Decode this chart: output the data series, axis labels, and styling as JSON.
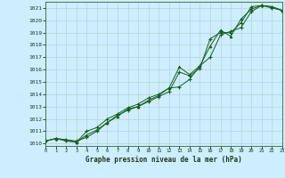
{
  "xlabel": "Graphe pression niveau de la mer (hPa)",
  "xlim": [
    0,
    23
  ],
  "ylim": [
    1009.8,
    1021.5
  ],
  "yticks": [
    1010,
    1011,
    1012,
    1013,
    1014,
    1015,
    1016,
    1017,
    1018,
    1019,
    1020,
    1021
  ],
  "xticks": [
    0,
    1,
    2,
    3,
    4,
    5,
    6,
    7,
    8,
    9,
    10,
    11,
    12,
    13,
    14,
    15,
    16,
    17,
    18,
    19,
    20,
    21,
    22,
    23
  ],
  "background_color": "#cceeff",
  "grid_color": "#b0cccc",
  "line_color": "#1a5c1a",
  "line1": [
    1010.2,
    1010.4,
    1010.3,
    1010.2,
    1010.5,
    1011.0,
    1011.7,
    1012.3,
    1012.7,
    1013.0,
    1013.4,
    1013.8,
    1014.2,
    1015.8,
    1015.5,
    1016.1,
    1018.5,
    1019.0,
    1019.0,
    1019.8,
    1021.1,
    1021.2,
    1021.0,
    1020.8
  ],
  "line2": [
    1010.2,
    1010.4,
    1010.2,
    1010.1,
    1011.0,
    1011.3,
    1012.0,
    1012.4,
    1012.9,
    1013.2,
    1013.7,
    1014.0,
    1014.5,
    1014.6,
    1015.2,
    1016.3,
    1017.0,
    1018.8,
    1019.1,
    1019.4,
    1020.7,
    1021.2,
    1021.1,
    1020.8
  ],
  "line3": [
    1010.2,
    1010.4,
    1010.3,
    1010.1,
    1010.7,
    1011.1,
    1011.7,
    1012.2,
    1012.8,
    1013.0,
    1013.5,
    1013.9,
    1014.5,
    1016.2,
    1015.6,
    1016.3,
    1017.9,
    1019.2,
    1018.7,
    1020.1,
    1020.9,
    1021.2,
    1021.1,
    1020.8
  ]
}
